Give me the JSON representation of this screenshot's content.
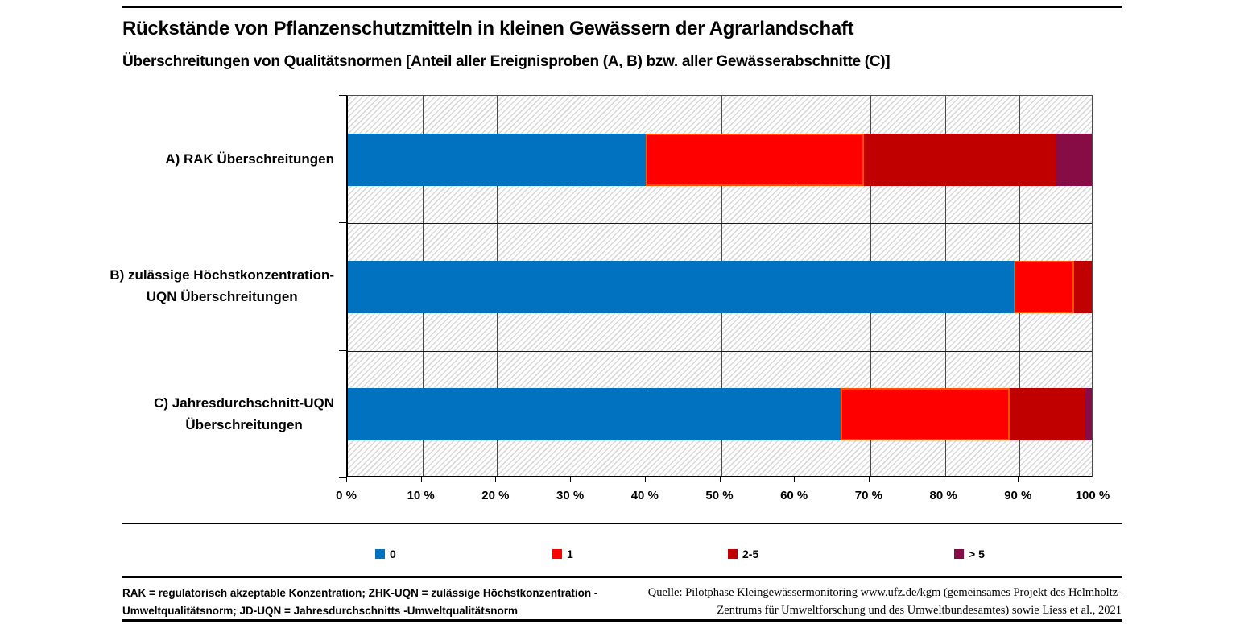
{
  "title": "Rückstände von Pflanzenschutzmitteln in kleinen Gewässern der Agrarlandschaft",
  "subtitle": "Überschreitungen von Qualitätsnormen [Anteil aller Ereignisproben (A, B) bzw. aller Gewässerabschnitte (C)]",
  "chart_data": {
    "type": "bar",
    "orientation": "horizontal",
    "stacked": true,
    "unit": "%",
    "xlim": [
      0,
      100
    ],
    "x_ticks": [
      "0 %",
      "10 %",
      "20 %",
      "30 %",
      "40 %",
      "50 %",
      "60 %",
      "70 %",
      "80 %",
      "90 %",
      "100 %"
    ],
    "grid": "vertical",
    "legend_position": "bottom",
    "categories": [
      "A) RAK Überschreitungen",
      "B) zulässige Höchstkonzentration-\nUQN Überschreitungen",
      "C) Jahresdurchschnitt-UQN\nÜberschreitungen"
    ],
    "series": [
      {
        "name": "0",
        "id": "count-0",
        "color": "#0072C0",
        "values": [
          40.0,
          89.5,
          66.2
        ]
      },
      {
        "name": "1",
        "id": "count-1",
        "color": "#FF0000",
        "border": "#FF5100",
        "values": [
          29.4,
          8.1,
          22.8
        ]
      },
      {
        "name": "2-5",
        "id": "count-2-5",
        "color": "#C00000",
        "values": [
          25.7,
          2.4,
          10.0
        ]
      },
      {
        "name": "> 5",
        "id": "count-gt-5",
        "color": "#870B45",
        "values": [
          4.9,
          0.0,
          1.0
        ]
      }
    ]
  },
  "footnotes": {
    "left_line1": "RAK = regulatorisch akzeptable Konzentration; ZHK-UQN = zulässige Höchstkonzentration -",
    "left_line2": "Umweltqualitätsnorm; JD-UQN = Jahresdurchschnitts -Umweltqualitätsnorm",
    "right_line1": "Quelle: Pilotphase Kleingewässermonitoring www.ufz.de/kgm (gemeinsames Projekt des Helmholtz-",
    "right_line2": "Zentrums für Umweltforschung und des Umweltbundesamtes) sowie Liess et al., 2021"
  }
}
